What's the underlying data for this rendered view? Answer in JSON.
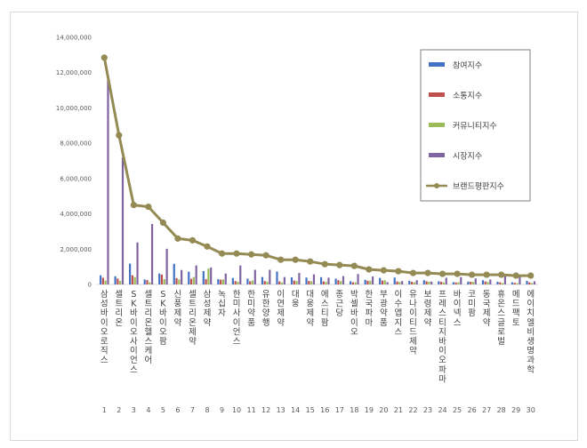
{
  "chart_data": {
    "type": "bar",
    "title": "",
    "xlabel": "",
    "ylabel": "",
    "ylim": [
      0,
      14000000
    ],
    "yticks": [
      "0",
      "2,000,000",
      "4,000,000",
      "6,000,000",
      "8,000,000",
      "10,000,000",
      "12,000,000",
      "14,000,000"
    ],
    "grid": false,
    "legend_position": "right",
    "categories": [
      "1",
      "2",
      "3",
      "4",
      "5",
      "6",
      "7",
      "8",
      "9",
      "10",
      "11",
      "12",
      "13",
      "14",
      "15",
      "16",
      "17",
      "18",
      "19",
      "20",
      "21",
      "22",
      "23",
      "24",
      "25",
      "26",
      "27",
      "28",
      "29",
      "30"
    ],
    "category_names": [
      "삼성바이오로직스",
      "셀트리온",
      "SK바이오사이언스",
      "셀트리온헬스케어",
      "SK바이오팜",
      "신풍제약",
      "셀트리온제약",
      "삼성제약",
      "녹십자",
      "한미사이언스",
      "한미약품",
      "유한양행",
      "이연제약",
      "대웅",
      "대웅제약",
      "에스티팜",
      "종근당",
      "박셀바이오",
      "한국파마",
      "부광약품",
      "이수앱지스",
      "유나이티드제약",
      "보령제약",
      "프레스티지바이오파마",
      "바이넥스",
      "코미팜",
      "동국제약",
      "휴온스글로벌",
      "메드팩토",
      "에이치엘비생명과학"
    ],
    "series": [
      {
        "name": "참여지수",
        "color": "#4472c4",
        "type": "bar",
        "values": [
          520000,
          460000,
          1180000,
          280000,
          620000,
          1170000,
          720000,
          760000,
          300000,
          370000,
          330000,
          420000,
          730000,
          400000,
          390000,
          410000,
          330000,
          180000,
          260000,
          370000,
          390000,
          210000,
          240000,
          180000,
          130000,
          160000,
          240000,
          150000,
          120000,
          200000
        ]
      },
      {
        "name": "소통지수",
        "color": "#c0504d",
        "type": "bar",
        "values": [
          380000,
          330000,
          520000,
          250000,
          560000,
          360000,
          320000,
          300000,
          270000,
          190000,
          180000,
          190000,
          170000,
          220000,
          200000,
          170000,
          240000,
          120000,
          210000,
          220000,
          170000,
          150000,
          180000,
          150000,
          110000,
          150000,
          170000,
          120000,
          90000,
          120000
        ]
      },
      {
        "name": "커뮤니티지수",
        "color": "#9bbb59",
        "type": "bar",
        "values": [
          220000,
          200000,
          420000,
          120000,
          300000,
          280000,
          420000,
          900000,
          290000,
          160000,
          220000,
          160000,
          110000,
          190000,
          180000,
          140000,
          190000,
          120000,
          210000,
          240000,
          140000,
          120000,
          150000,
          110000,
          130000,
          140000,
          140000,
          80000,
          70000,
          80000
        ]
      },
      {
        "name": "시장지수",
        "color": "#8064a2",
        "type": "bar",
        "values": [
          11600000,
          7200000,
          2380000,
          3420000,
          2020000,
          820000,
          1080000,
          960000,
          620000,
          1070000,
          830000,
          830000,
          420000,
          650000,
          570000,
          380000,
          470000,
          590000,
          450000,
          130000,
          190000,
          240000,
          160000,
          380000,
          420000,
          340000,
          280000,
          470000,
          470000,
          180000
        ]
      },
      {
        "name": "브랜드평판지수",
        "color": "#948a54",
        "type": "line",
        "values": [
          12850000,
          8450000,
          4500000,
          4400000,
          3500000,
          2600000,
          2500000,
          2150000,
          1750000,
          1750000,
          1700000,
          1650000,
          1400000,
          1400000,
          1300000,
          1150000,
          1100000,
          1050000,
          850000,
          800000,
          750000,
          650000,
          650000,
          600000,
          600000,
          550000,
          550000,
          550000,
          500000,
          500000
        ]
      }
    ]
  }
}
